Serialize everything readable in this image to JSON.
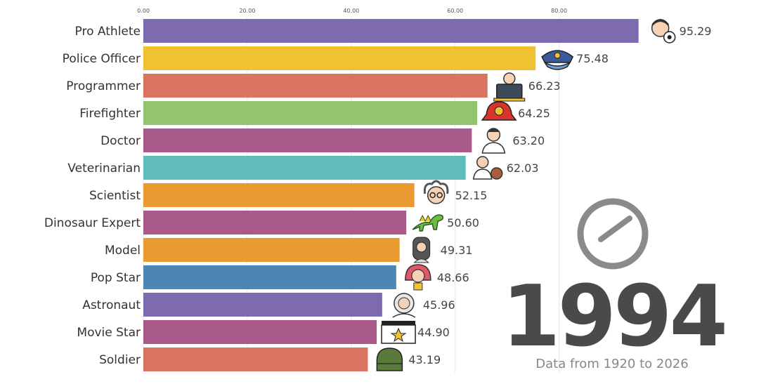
{
  "chart_data": {
    "type": "bar",
    "orientation": "horizontal",
    "categories": [
      "Pro Athlete",
      "Police Officer",
      "Programmer",
      "Firefighter",
      "Doctor",
      "Veterinarian",
      "Scientist",
      "Dinosaur Expert",
      "Model",
      "Pop Star",
      "Astronaut",
      "Movie Star",
      "Soldier"
    ],
    "values": [
      95.29,
      75.48,
      66.23,
      64.25,
      63.2,
      62.03,
      52.15,
      50.6,
      49.31,
      48.66,
      45.96,
      44.9,
      43.19
    ],
    "value_labels": [
      "95.29",
      "75.48",
      "66.23",
      "64.25",
      "63.20",
      "62.03",
      "52.15",
      "50.60",
      "49.31",
      "48.66",
      "45.96",
      "44.90",
      "43.19"
    ],
    "colors": [
      "#7e6aae",
      "#f0c232",
      "#da7461",
      "#93c46f",
      "#a95a8b",
      "#5fbcbb",
      "#e99b32",
      "#a95a8b",
      "#e99b32",
      "#4d86b2",
      "#7e6aae",
      "#a95a8b",
      "#da7461"
    ],
    "icons": [
      "athlete-soccer-icon",
      "police-cap-icon",
      "programmer-laptop-icon",
      "firefighter-helmet-icon",
      "doctor-icon",
      "veterinarian-dog-icon",
      "scientist-icon",
      "dinosaur-icon",
      "model-icon",
      "pop-star-icon",
      "astronaut-icon",
      "movie-clapperboard-icon",
      "soldier-helmet-icon"
    ],
    "xticks": [
      0,
      20,
      40,
      60,
      80
    ],
    "xtick_labels": [
      "0.00",
      "20.00",
      "40.00",
      "60.00",
      "80.00"
    ],
    "xlim": [
      0,
      100
    ],
    "grid": true,
    "year": "1994",
    "note": "Data from 1920 to 2026",
    "clock_icon": "clock-icon"
  }
}
